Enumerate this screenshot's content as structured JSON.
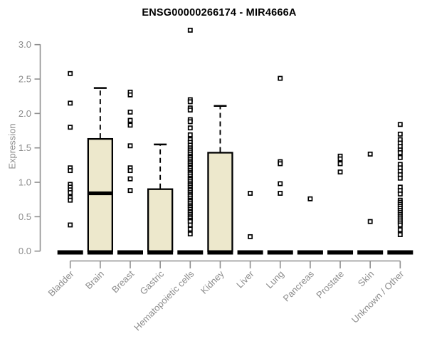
{
  "chart_data": {
    "type": "box",
    "title": "ENSG00000266174 - MIR4666A",
    "ylabel": "Expression",
    "xlabel": "",
    "ylim": [
      0,
      3.0
    ],
    "yticks": [
      "0.0",
      "0.5",
      "1.0",
      "1.5",
      "2.0",
      "2.5",
      "3.0"
    ],
    "grid": false,
    "legend": "none",
    "marker": "open-square",
    "categories": [
      "Bladder",
      "Brain",
      "Breast",
      "Gastric",
      "Hematopoietic cells",
      "Kidney",
      "Liver",
      "Lung",
      "Pancreas",
      "Prostate",
      "Skin",
      "Unknown / Other"
    ],
    "boxes": [
      {
        "category": "Bladder",
        "median": 0,
        "q1": 0,
        "q3": 0,
        "whisker_low": 0,
        "whisker_high": 0,
        "points": [
          2.58,
          2.15,
          1.8,
          1.21,
          1.17,
          0.97,
          0.93,
          0.89,
          0.85,
          0.78,
          0.74,
          0.38
        ]
      },
      {
        "category": "Brain",
        "median": 0.84,
        "q1": 0,
        "q3": 1.63,
        "whisker_low": 0,
        "whisker_high": 2.37,
        "points": []
      },
      {
        "category": "Breast",
        "median": 0,
        "q1": 0,
        "q3": 0,
        "whisker_low": 0,
        "whisker_high": 0,
        "points": [
          2.31,
          2.27,
          2.02,
          1.9,
          1.83,
          1.53,
          1.21,
          1.17,
          1.05,
          0.88
        ]
      },
      {
        "category": "Gastric",
        "median": 0,
        "q1": 0,
        "q3": 0.9,
        "whisker_low": 0,
        "whisker_high": 1.55,
        "points": []
      },
      {
        "category": "Hematopoietic cells",
        "median": 0,
        "q1": 0,
        "q3": 0,
        "whisker_low": 0,
        "whisker_high": 0,
        "points": [
          3.21,
          2.2,
          2.17,
          2.08,
          2.05,
          1.91,
          1.88,
          1.79,
          1.69,
          1.62,
          1.58,
          1.54,
          1.5,
          1.47,
          1.44,
          1.41,
          1.38,
          1.36,
          1.33,
          1.3,
          1.28,
          1.25,
          1.22,
          1.2,
          1.17,
          1.14,
          1.12,
          1.09,
          1.06,
          1.04,
          1.01,
          0.98,
          0.96,
          0.93,
          0.9,
          0.88,
          0.85,
          0.82,
          0.8,
          0.77,
          0.74,
          0.72,
          0.69,
          0.66,
          0.64,
          0.61,
          0.58,
          0.56,
          0.53,
          0.5,
          0.48,
          0.45,
          0.43,
          0.38,
          0.32,
          0.25
        ]
      },
      {
        "category": "Kidney",
        "median": 0,
        "q1": 0,
        "q3": 1.43,
        "whisker_low": 0,
        "whisker_high": 2.11,
        "points": []
      },
      {
        "category": "Liver",
        "median": 0,
        "q1": 0,
        "q3": 0,
        "whisker_low": 0,
        "whisker_high": 0,
        "points": [
          0.84,
          0.21
        ]
      },
      {
        "category": "Lung",
        "median": 0,
        "q1": 0,
        "q3": 0,
        "whisker_low": 0,
        "whisker_high": 0,
        "points": [
          2.51,
          1.3,
          1.27,
          0.98,
          0.84
        ]
      },
      {
        "category": "Pancreas",
        "median": 0,
        "q1": 0,
        "q3": 0,
        "whisker_low": 0,
        "whisker_high": 0,
        "points": [
          0.76
        ]
      },
      {
        "category": "Prostate",
        "median": 0,
        "q1": 0,
        "q3": 0,
        "whisker_low": 0,
        "whisker_high": 0,
        "points": [
          1.38,
          1.34,
          1.27,
          1.15
        ]
      },
      {
        "category": "Skin",
        "median": 0,
        "q1": 0,
        "q3": 0,
        "whisker_low": 0,
        "whisker_high": 0,
        "points": [
          1.41,
          0.43
        ]
      },
      {
        "category": "Unknown / Other",
        "median": 0,
        "q1": 0,
        "q3": 0,
        "whisker_low": 0,
        "whisker_high": 0,
        "points": [
          1.84,
          1.7,
          1.62,
          1.57,
          1.52,
          1.47,
          1.43,
          1.36,
          1.26,
          1.21,
          1.16,
          1.11,
          1.06,
          0.93,
          0.88,
          0.83,
          0.74,
          0.71,
          0.68,
          0.65,
          0.62,
          0.59,
          0.56,
          0.53,
          0.5,
          0.47,
          0.44,
          0.41,
          0.38,
          0.31,
          0.24
        ]
      }
    ],
    "colors": {
      "box_fill": "#EDE8CC",
      "box_stroke": "#000000",
      "point_stroke": "#000000",
      "point_fill": "#ffffff",
      "axis": "#8f8f8f",
      "tick_label": "#8c8c8c",
      "title": "#000000",
      "background": "#ffffff"
    }
  }
}
